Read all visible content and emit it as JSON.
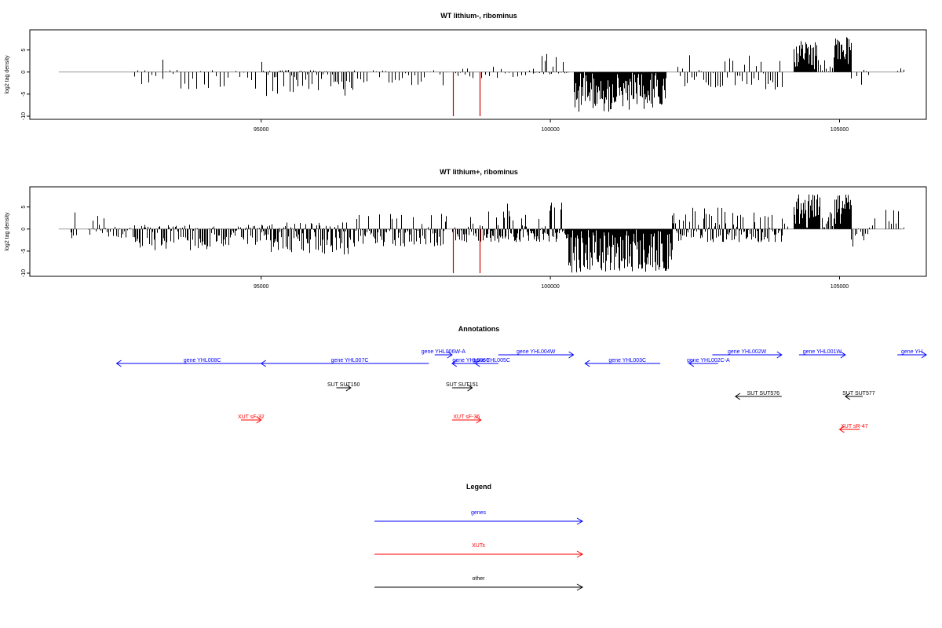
{
  "chart_data": [
    {
      "type": "bar",
      "title": "WT lithium-, ribominus",
      "ylabel": "log2 tag density",
      "xlabel": "",
      "xlim": [
        91000,
        106500
      ],
      "ylim": [
        -10,
        8.5
      ],
      "xticks": [
        95000,
        100000,
        105000
      ],
      "yticks": [
        -10,
        -5,
        0,
        5
      ],
      "grid": false,
      "highlight_color": "#cc0000",
      "highlights": [
        {
          "x": 98320,
          "y": -10
        },
        {
          "x": 98780,
          "y": -10
        }
      ],
      "segments": [
        {
          "from": 92800,
          "to": 93600,
          "min": -3,
          "max": 0.5,
          "n": 14,
          "seed": 1
        },
        {
          "from": 93300,
          "to": 93320,
          "min": 2.8,
          "max": 2.8,
          "n": 1,
          "seed": 2
        },
        {
          "from": 93600,
          "to": 94900,
          "min": -4,
          "max": 0.5,
          "n": 20,
          "seed": 3
        },
        {
          "from": 95000,
          "to": 95020,
          "min": 2.3,
          "max": 2.3,
          "n": 1,
          "seed": 4
        },
        {
          "from": 95000,
          "to": 96600,
          "min": -5.5,
          "max": 0.5,
          "n": 60,
          "seed": 5
        },
        {
          "from": 96600,
          "to": 98200,
          "min": -3,
          "max": 0.5,
          "n": 30,
          "seed": 6
        },
        {
          "from": 98350,
          "to": 98650,
          "min": -2,
          "max": 1.2,
          "n": 8,
          "seed": 7
        },
        {
          "from": 98800,
          "to": 99700,
          "min": -1.5,
          "max": 3,
          "n": 14,
          "seed": 8
        },
        {
          "from": 99700,
          "to": 100300,
          "min": -0.5,
          "max": 4.5,
          "n": 22,
          "seed": 9
        },
        {
          "from": 100400,
          "to": 102000,
          "min": -9,
          "max": 0,
          "n": 130,
          "seed": 10
        },
        {
          "from": 102200,
          "to": 104000,
          "min": -4,
          "max": 4,
          "n": 45,
          "seed": 11
        },
        {
          "from": 104200,
          "to": 104600,
          "min": 0,
          "max": 7,
          "n": 40,
          "seed": 12
        },
        {
          "from": 104600,
          "to": 104900,
          "min": 0,
          "max": 3,
          "n": 10,
          "seed": 13
        },
        {
          "from": 104900,
          "to": 105200,
          "min": 0,
          "max": 8,
          "n": 40,
          "seed": 14
        },
        {
          "from": 105200,
          "to": 105500,
          "min": -3,
          "max": 2,
          "n": 8,
          "seed": 15
        },
        {
          "from": 106000,
          "to": 106100,
          "min": 0,
          "max": 3,
          "n": 3,
          "seed": 16
        }
      ]
    },
    {
      "type": "bar",
      "title": "WT lithium+, ribominus",
      "ylabel": "log2 tag density",
      "xlabel": "",
      "xlim": [
        91000,
        106500
      ],
      "ylim": [
        -10,
        8.5
      ],
      "xticks": [
        95000,
        100000,
        105000
      ],
      "yticks": [
        -10,
        -5,
        0,
        5
      ],
      "grid": false,
      "highlight_color": "#cc0000",
      "highlights": [
        {
          "x": 98320,
          "y": -10
        },
        {
          "x": 98780,
          "y": -10
        }
      ],
      "segments": [
        {
          "from": 91700,
          "to": 91800,
          "min": -3,
          "max": 4.5,
          "n": 5,
          "seed": 21
        },
        {
          "from": 92000,
          "to": 92800,
          "min": -2,
          "max": 3,
          "n": 30,
          "seed": 22
        },
        {
          "from": 92800,
          "to": 95000,
          "min": -5,
          "max": 1,
          "n": 110,
          "seed": 23
        },
        {
          "from": 95000,
          "to": 96500,
          "min": -6,
          "max": 1.5,
          "n": 90,
          "seed": 24
        },
        {
          "from": 96500,
          "to": 98200,
          "min": -4,
          "max": 3.5,
          "n": 80,
          "seed": 25
        },
        {
          "from": 98300,
          "to": 98900,
          "min": -3,
          "max": 3,
          "n": 30,
          "seed": 26
        },
        {
          "from": 98900,
          "to": 100300,
          "min": -3,
          "max": 6,
          "n": 90,
          "seed": 27
        },
        {
          "from": 100300,
          "to": 102100,
          "min": -10,
          "max": 0,
          "n": 180,
          "seed": 28
        },
        {
          "from": 102100,
          "to": 104000,
          "min": -3,
          "max": 5,
          "n": 110,
          "seed": 29
        },
        {
          "from": 104000,
          "to": 104100,
          "min": 0,
          "max": 3,
          "n": 3,
          "seed": 30
        },
        {
          "from": 104200,
          "to": 104650,
          "min": 0,
          "max": 8,
          "n": 45,
          "seed": 31
        },
        {
          "from": 104650,
          "to": 104900,
          "min": 0,
          "max": 4,
          "n": 12,
          "seed": 32
        },
        {
          "from": 104900,
          "to": 105200,
          "min": 0,
          "max": 8,
          "n": 40,
          "seed": 33
        },
        {
          "from": 105200,
          "to": 105600,
          "min": -4,
          "max": 3,
          "n": 14,
          "seed": 34
        },
        {
          "from": 105800,
          "to": 106100,
          "min": 0,
          "max": 4.5,
          "n": 8,
          "seed": 35
        }
      ]
    }
  ],
  "annotations": {
    "title": "Annotations",
    "genes_color": "#0000ff",
    "xuts_color": "#ff0000",
    "other_color": "#000000",
    "items": [
      {
        "label": "gene YHL008C",
        "kind": "gene",
        "from": 92500,
        "to": 95300,
        "dir": "left",
        "row": 1
      },
      {
        "label": "gene YHL007C",
        "kind": "gene",
        "from": 95000,
        "to": 97900,
        "dir": "left",
        "row": 1
      },
      {
        "label": "gene YHL006W-A",
        "kind": "gene",
        "from": 98000,
        "to": 98300,
        "dir": "right",
        "row": 0
      },
      {
        "label": "gene YHL006C",
        "kind": "gene",
        "from": 98300,
        "to": 98800,
        "dir": "left",
        "row": 1
      },
      {
        "label": "gene YHL005C",
        "kind": "gene",
        "from": 98700,
        "to": 99100,
        "dir": "left",
        "row": 1
      },
      {
        "label": "gene YHL004W",
        "kind": "gene",
        "from": 99100,
        "to": 100400,
        "dir": "right",
        "row": 0
      },
      {
        "label": "gene YHL003C",
        "kind": "gene",
        "from": 100600,
        "to": 101900,
        "dir": "left",
        "row": 1
      },
      {
        "label": "gene YHL002C-A",
        "kind": "gene",
        "from": 102400,
        "to": 102900,
        "dir": "left",
        "row": 1
      },
      {
        "label": "gene YHL002W",
        "kind": "gene",
        "from": 102800,
        "to": 104000,
        "dir": "right",
        "row": 0
      },
      {
        "label": "gene YHL001W",
        "kind": "gene",
        "from": 104300,
        "to": 105100,
        "dir": "right",
        "row": 0
      },
      {
        "label": "gene YH",
        "kind": "gene",
        "from": 106000,
        "to": 106500,
        "dir": "right",
        "row": 0
      },
      {
        "label": "SUT SUT150",
        "kind": "other",
        "from": 96300,
        "to": 96550,
        "dir": "right",
        "row": 2
      },
      {
        "label": "SUT SUT151",
        "kind": "other",
        "from": 98300,
        "to": 98650,
        "dir": "right",
        "row": 2
      },
      {
        "label": "SUT SUT576",
        "kind": "other",
        "from": 103200,
        "to": 104000,
        "dir": "left",
        "row": 3
      },
      {
        "label": "SUT SUT577",
        "kind": "other",
        "from": 105100,
        "to": 105400,
        "dir": "left",
        "row": 3
      },
      {
        "label": "XUT sF-32",
        "kind": "xut",
        "from": 94650,
        "to": 95000,
        "dir": "right",
        "row": 4
      },
      {
        "label": "XUT sF-36",
        "kind": "xut",
        "from": 98300,
        "to": 98800,
        "dir": "right",
        "row": 4
      },
      {
        "label": "XUT sR-47",
        "kind": "xut",
        "from": 105000,
        "to": 105350,
        "dir": "left",
        "row": 5
      }
    ]
  },
  "legend": {
    "title": "Legend",
    "items": [
      {
        "label": "genes",
        "color": "#0000ff"
      },
      {
        "label": "XUTs",
        "color": "#ff0000"
      },
      {
        "label": "other",
        "color": "#000000"
      }
    ]
  }
}
